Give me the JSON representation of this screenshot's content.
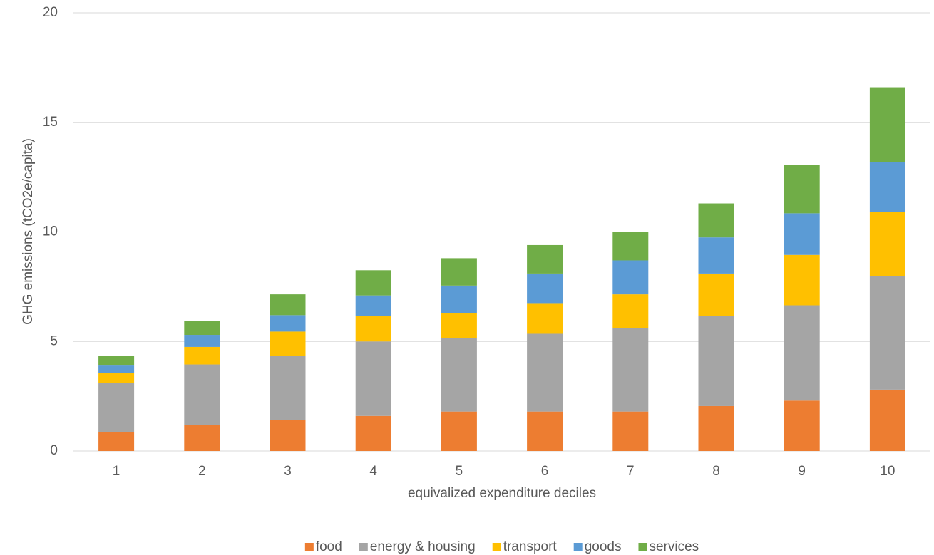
{
  "chart_data": {
    "type": "stacked_bar",
    "x_label": "equivalized expenditure deciles",
    "y_label": "GHG emissions (tCO2e/capita)",
    "categories": [
      "1",
      "2",
      "3",
      "4",
      "5",
      "6",
      "7",
      "8",
      "9",
      "10"
    ],
    "series": [
      {
        "name": "food",
        "color": "#ed7d31",
        "values": [
          0.85,
          1.2,
          1.4,
          1.6,
          1.8,
          1.8,
          1.8,
          2.05,
          2.3,
          2.8
        ]
      },
      {
        "name": "energy & housing",
        "color": "#a5a5a5",
        "values": [
          2.25,
          2.75,
          2.95,
          3.4,
          3.35,
          3.55,
          3.8,
          4.1,
          4.35,
          5.2
        ]
      },
      {
        "name": "transport",
        "color": "#ffc000",
        "values": [
          0.45,
          0.8,
          1.1,
          1.15,
          1.15,
          1.4,
          1.55,
          1.95,
          2.3,
          2.9
        ]
      },
      {
        "name": "goods",
        "color": "#5b9bd5",
        "values": [
          0.35,
          0.55,
          0.75,
          0.95,
          1.25,
          1.35,
          1.55,
          1.65,
          1.9,
          2.3
        ]
      },
      {
        "name": "services",
        "color": "#70ad47",
        "values": [
          0.45,
          0.65,
          0.95,
          1.15,
          1.25,
          1.3,
          1.3,
          1.55,
          2.2,
          3.4
        ]
      }
    ],
    "ylim": [
      0,
      20
    ],
    "yticks": [
      0,
      5,
      10,
      15,
      20
    ],
    "grid": true,
    "legend": "bottom"
  }
}
